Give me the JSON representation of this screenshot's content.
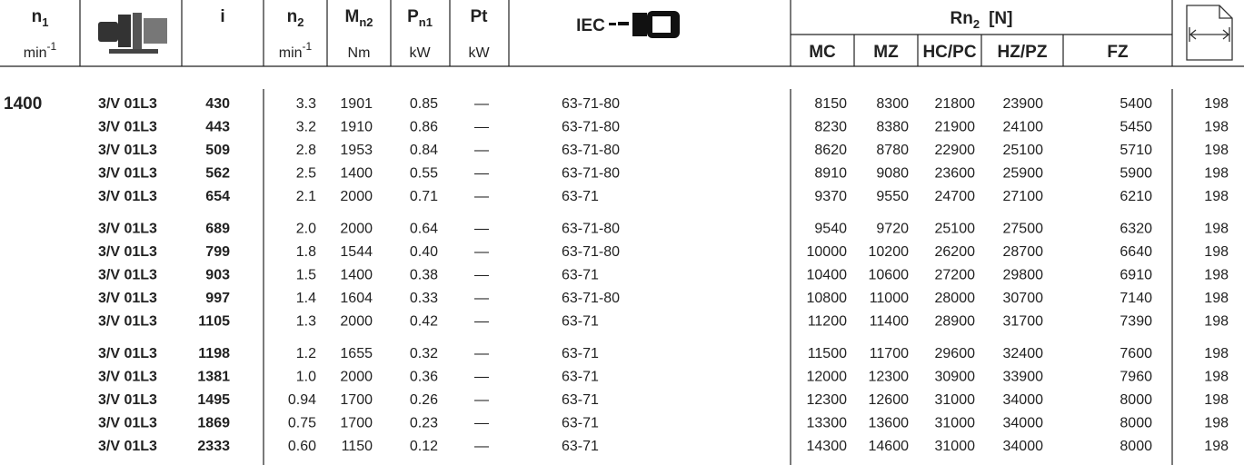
{
  "header": {
    "n1": {
      "symbol": "n",
      "subscript": "1",
      "unit": "min",
      "unit_superscript": "-1"
    },
    "i": {
      "symbol": "i"
    },
    "n2": {
      "symbol": "n",
      "subscript": "2",
      "unit": "min",
      "unit_superscript": "-1"
    },
    "mn2": {
      "symbol": "M",
      "subscript": "n2",
      "unit": "Nm"
    },
    "pn1": {
      "symbol": "P",
      "subscript": "n1",
      "unit": "kW"
    },
    "pt": {
      "symbol": "Pt",
      "unit": "kW"
    },
    "iec": {
      "label": "IEC"
    },
    "rn2": {
      "symbol": "Rn",
      "subscript": "2",
      "unit": "[N]",
      "columns": [
        "MC",
        "MZ",
        "HC/PC",
        "HZ/PZ",
        "FZ"
      ]
    }
  },
  "table": {
    "n1": "1400",
    "rows": [
      [
        "3/V 01L3",
        "430",
        "3.3",
        "1901",
        "0.85",
        "—",
        "63-71-80",
        "8150",
        "8300",
        "21800",
        "23900",
        "5400",
        "198"
      ],
      [
        "3/V 01L3",
        "443",
        "3.2",
        "1910",
        "0.86",
        "—",
        "63-71-80",
        "8230",
        "8380",
        "21900",
        "24100",
        "5450",
        "198"
      ],
      [
        "3/V 01L3",
        "509",
        "2.8",
        "1953",
        "0.84",
        "—",
        "63-71-80",
        "8620",
        "8780",
        "22900",
        "25100",
        "5710",
        "198"
      ],
      [
        "3/V 01L3",
        "562",
        "2.5",
        "1400",
        "0.55",
        "—",
        "63-71-80",
        "8910",
        "9080",
        "23600",
        "25900",
        "5900",
        "198"
      ],
      [
        "3/V 01L3",
        "654",
        "2.1",
        "2000",
        "0.71",
        "—",
        "63-71",
        "9370",
        "9550",
        "24700",
        "27100",
        "6210",
        "198"
      ],
      [
        "3/V 01L3",
        "689",
        "2.0",
        "2000",
        "0.64",
        "—",
        "63-71-80",
        "9540",
        "9720",
        "25100",
        "27500",
        "6320",
        "198"
      ],
      [
        "3/V 01L3",
        "799",
        "1.8",
        "1544",
        "0.40",
        "—",
        "63-71-80",
        "10000",
        "10200",
        "26200",
        "28700",
        "6640",
        "198"
      ],
      [
        "3/V 01L3",
        "903",
        "1.5",
        "1400",
        "0.38",
        "—",
        "63-71",
        "10400",
        "10600",
        "27200",
        "29800",
        "6910",
        "198"
      ],
      [
        "3/V 01L3",
        "997",
        "1.4",
        "1604",
        "0.33",
        "—",
        "63-71-80",
        "10800",
        "11000",
        "28000",
        "30700",
        "7140",
        "198"
      ],
      [
        "3/V 01L3",
        "1105",
        "1.3",
        "2000",
        "0.42",
        "—",
        "63-71",
        "11200",
        "11400",
        "28900",
        "31700",
        "7390",
        "198"
      ],
      [
        "3/V 01L3",
        "1198",
        "1.2",
        "1655",
        "0.32",
        "—",
        "63-71",
        "11500",
        "11700",
        "29600",
        "32400",
        "7600",
        "198"
      ],
      [
        "3/V 01L3",
        "1381",
        "1.0",
        "2000",
        "0.36",
        "—",
        "63-71",
        "12000",
        "12300",
        "30900",
        "33900",
        "7960",
        "198"
      ],
      [
        "3/V 01L3",
        "1495",
        "0.94",
        "1700",
        "0.26",
        "—",
        "63-71",
        "12300",
        "12600",
        "31000",
        "34000",
        "8000",
        "198"
      ],
      [
        "3/V 01L3",
        "1869",
        "0.75",
        "1700",
        "0.23",
        "—",
        "63-71",
        "13300",
        "13600",
        "31000",
        "34000",
        "8000",
        "198"
      ],
      [
        "3/V 01L3",
        "2333",
        "0.60",
        "1150",
        "0.12",
        "—",
        "63-71",
        "14300",
        "14600",
        "31000",
        "34000",
        "8000",
        "198"
      ]
    ]
  }
}
